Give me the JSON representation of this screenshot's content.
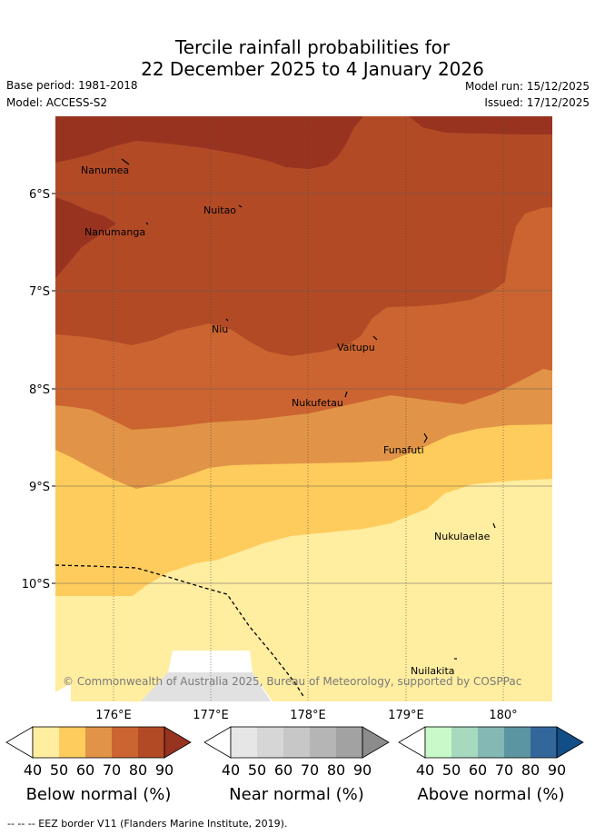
{
  "title": {
    "line1": "Tercile rainfall probabilities for",
    "line2": "22 December 2025 to 4 January 2026"
  },
  "meta": {
    "base_period": "Base period: 1981-2018",
    "model": "Model: ACCESS-S2",
    "model_run": "Model run: 15/12/2025",
    "issued": "Issued: 17/12/2025"
  },
  "map": {
    "lat_labels": [
      "6°S",
      "7°S",
      "8°S",
      "9°S",
      "10°S"
    ],
    "lon_labels": [
      "176°E",
      "177°E",
      "178°E",
      "179°E",
      "180°"
    ],
    "islands": [
      "Nanumea",
      "Nuitao",
      "Nanumanga",
      "Niu",
      "Vaitupu",
      "Nukufetau",
      "Funafuti",
      "Nukulaelae",
      "Nuilakita"
    ],
    "copyright": "© Commonwealth of Australia 2025, Bureau of Meteorology, supported by COSPPac"
  },
  "legends": [
    {
      "label": "Below normal (%)",
      "ticks": [
        "40",
        "50",
        "60",
        "70",
        "80",
        "90"
      ],
      "colors": [
        "#ffeda0",
        "#fecc5c",
        "#e19447",
        "#cc6431",
        "#b24a26",
        "#983320"
      ]
    },
    {
      "label": "Near normal (%)",
      "ticks": [
        "40",
        "50",
        "60",
        "70",
        "80",
        "90"
      ],
      "colors": [
        "#e6e6e6",
        "#d6d6d6",
        "#c7c7c7",
        "#b5b5b5",
        "#a2a2a2",
        "#8c8c8c"
      ]
    },
    {
      "label": "Above normal (%)",
      "ticks": [
        "40",
        "50",
        "60",
        "70",
        "80",
        "90"
      ],
      "colors": [
        "#c9f9c8",
        "#a6d9be",
        "#83b8b5",
        "#5a95a1",
        "#33669b",
        "#114d86"
      ]
    }
  ],
  "footnote": "--  --  -- EEZ border V11 (Flanders Marine Institute, 2019)."
}
